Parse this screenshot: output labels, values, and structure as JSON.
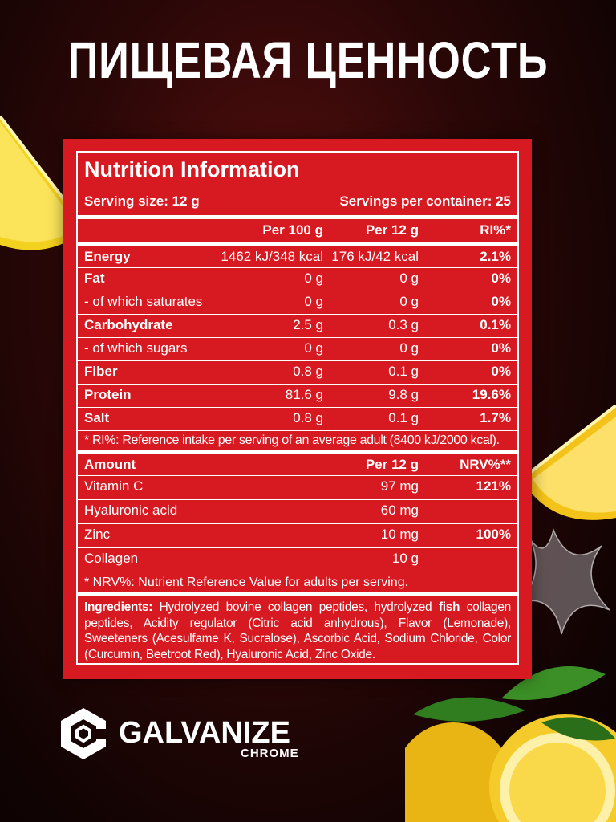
{
  "heading": "ПИЩЕВАЯ ЦЕННОСТЬ",
  "panel": {
    "title": "Nutrition Information",
    "serving_size": "Serving size: 12 g",
    "servings_per_container": "Servings per container: 25",
    "columns": [
      "Per 100 g",
      "Per 12 g",
      "RI%*"
    ],
    "rows": [
      {
        "name": "Energy",
        "per100": "1462 kJ/348 kcal",
        "per12": "176 kJ/42 kcal",
        "ri": "2.1%"
      },
      {
        "name": "Fat",
        "per100": "0 g",
        "per12": "0 g",
        "ri": "0%"
      },
      {
        "name": "- of which saturates",
        "per100": "0 g",
        "per12": "0 g",
        "ri": "0%"
      },
      {
        "name": "Carbohydrate",
        "per100": "2.5 g",
        "per12": "0.3 g",
        "ri": "0.1%"
      },
      {
        "name": "- of which sugars",
        "per100": "0 g",
        "per12": "0 g",
        "ri": "0%"
      },
      {
        "name": "Fiber",
        "per100": "0.8 g",
        "per12": "0.1 g",
        "ri": "0%"
      },
      {
        "name": "Protein",
        "per100": "81.6 g",
        "per12": "9.8 g",
        "ri": "19.6%"
      },
      {
        "name": "Salt",
        "per100": "0.8 g",
        "per12": "0.1 g",
        "ri": "1.7%"
      }
    ],
    "ri_note": "* RI%: Reference intake per serving of an average adult (8400 kJ/2000 kcal).",
    "amount_header": {
      "label": "Amount",
      "per12": "Per 12 g",
      "nrv": "NRV%**"
    },
    "amounts": [
      {
        "name": "Vitamin C",
        "per12": "97 mg",
        "nrv": "121%"
      },
      {
        "name": "Hyaluronic acid",
        "per12": "60 mg",
        "nrv": ""
      },
      {
        "name": "Zinc",
        "per12": "10 mg",
        "nrv": "100%"
      },
      {
        "name": "Collagen",
        "per12": "10 g",
        "nrv": ""
      }
    ],
    "nrv_note": "* NRV%: Nutrient Reference Value for adults per serving.",
    "ingredients": {
      "label": "Ingredients:",
      "part1": "Hydrolyzed bovine collagen peptides, hydrolyzed",
      "highlight": "fish",
      "part2": "collagen peptides, Acidity regulator (Citric acid anhydrous), Flavor (Lemonade), Sweeteners (Acesulfame K, Sucralose), Ascorbic Acid, Sodium Chloride, Color (Curcumin, Beetroot Red), Hyaluronic Acid, Zinc Oxide."
    }
  },
  "brand": {
    "name": "GALVANIZE",
    "sub": "CHROME"
  },
  "colors": {
    "panel": "#d71921",
    "background": "#2a0707",
    "lemon": "#f7c719"
  }
}
